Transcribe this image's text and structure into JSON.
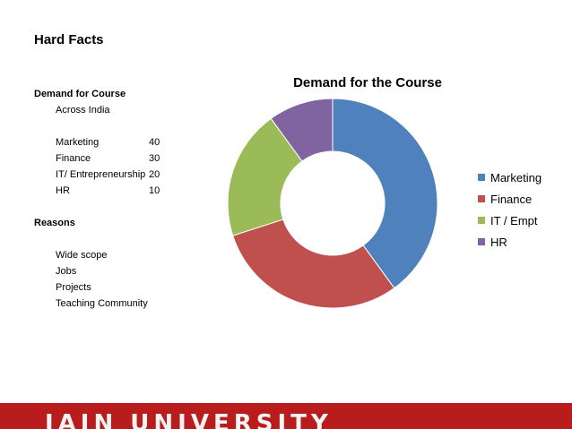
{
  "slide": {
    "title": "Hard Facts",
    "section_demand": "Demand for Course",
    "demand_sub": "Across India",
    "demand_items": [
      {
        "label": "Marketing",
        "value": "40"
      },
      {
        "label": "Finance",
        "value": "30"
      },
      {
        "label": "IT/ Entrepreneurship",
        "value": "20"
      },
      {
        "label": "HR",
        "value": "10"
      }
    ],
    "section_reasons": "Reasons",
    "reasons": [
      "Wide scope",
      "Jobs",
      "Projects",
      "Teaching Community"
    ],
    "footer": "JAIN UNIVERSITY"
  },
  "chart_data": {
    "type": "pie",
    "title": "Demand for the Course",
    "donut": true,
    "legend_position": "right",
    "categories": [
      "Marketing",
      "Finance",
      "IT / Empt",
      "HR"
    ],
    "values": [
      40,
      30,
      20,
      10
    ],
    "colors": [
      "#4f81bd",
      "#c0504d",
      "#9bbb59",
      "#8064a2"
    ]
  }
}
